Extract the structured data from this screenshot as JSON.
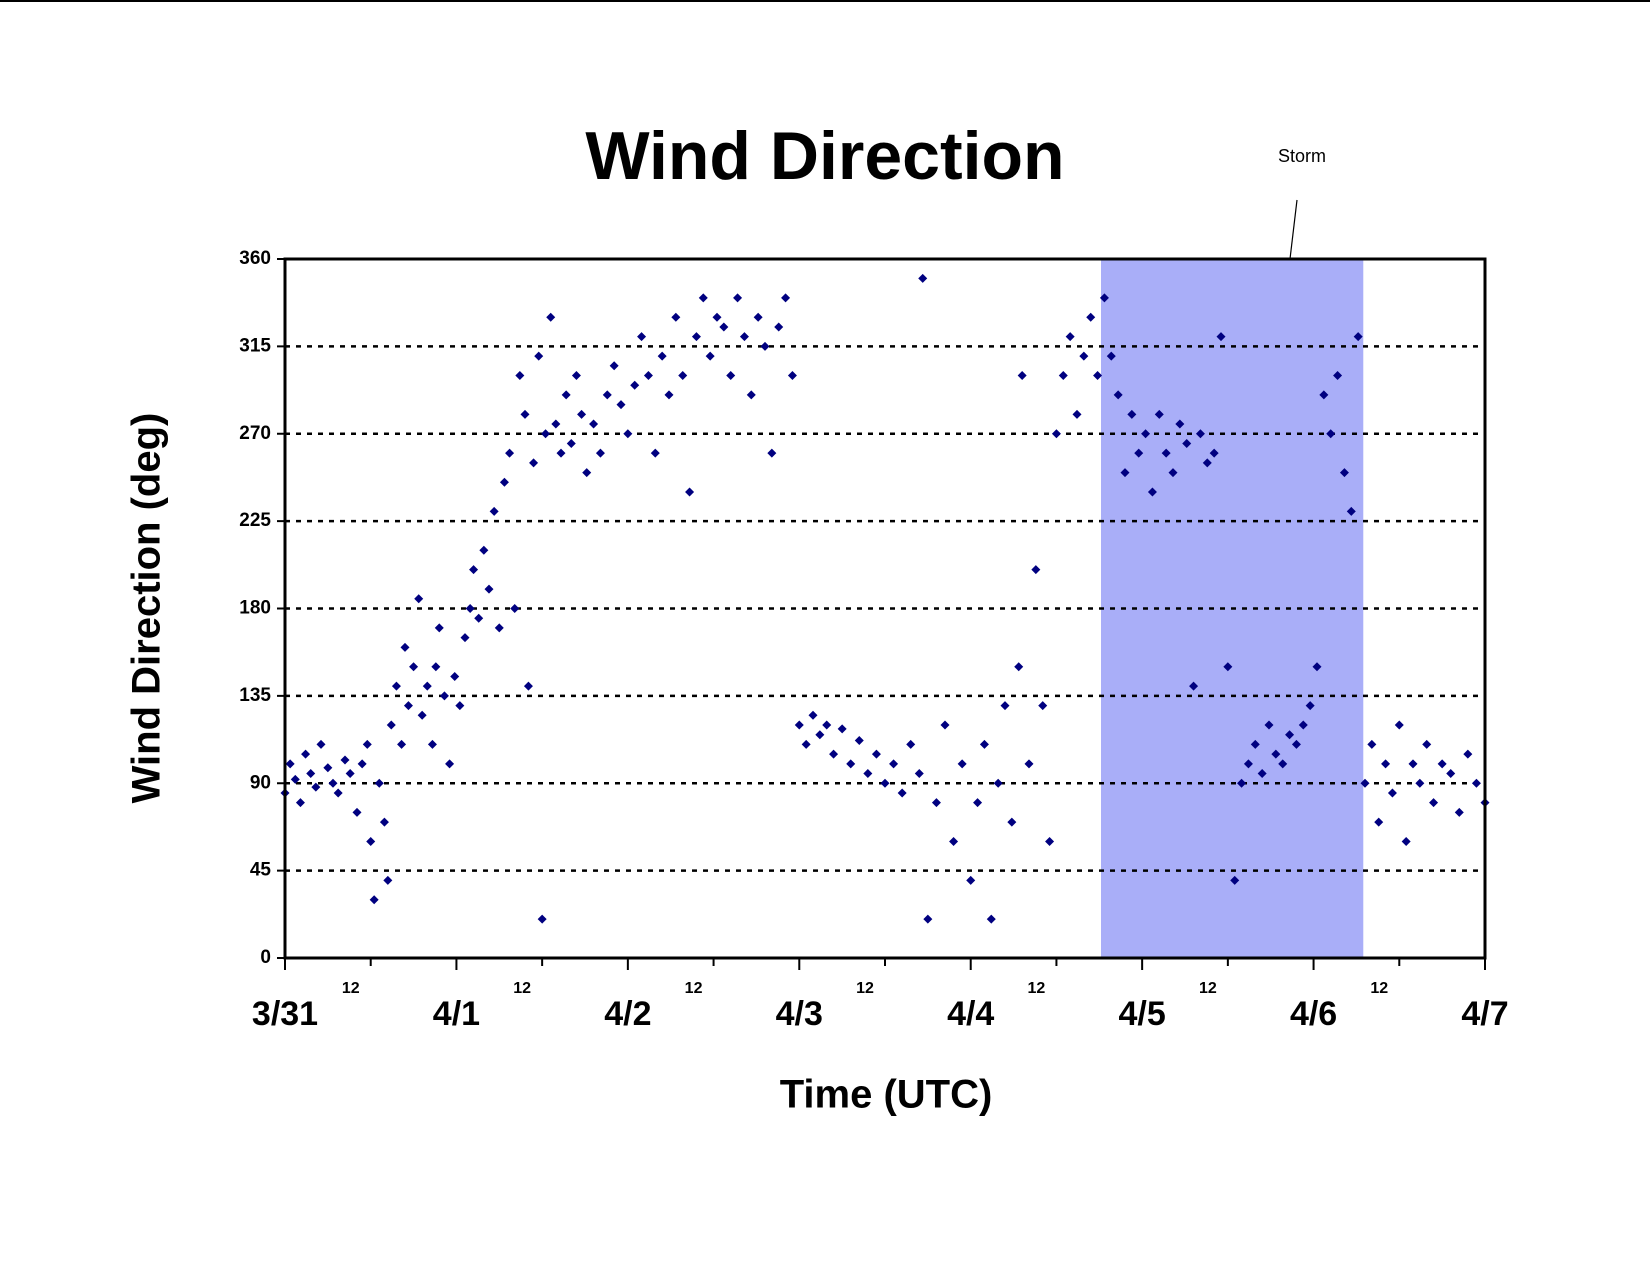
{
  "chart_data": {
    "type": "scatter",
    "title": "Wind Direction",
    "x_label": "Time (UTC)",
    "y_label": "Wind Direction (deg)",
    "color": "#000080",
    "grid": true,
    "storm": {
      "label": "Storm",
      "xlim": [
        4.76,
        6.29
      ],
      "color": "#a9aef8"
    },
    "xlim": [
      0,
      7
    ],
    "ylim": [
      0,
      360
    ],
    "yticks": [
      0,
      45,
      90,
      135,
      180,
      225,
      270,
      315,
      360
    ],
    "xticks": [
      {
        "value": 0,
        "label": "3/31"
      },
      {
        "value": 1,
        "label": "4/1"
      },
      {
        "value": 2,
        "label": "4/2"
      },
      {
        "value": 3,
        "label": "4/3"
      },
      {
        "value": 4,
        "label": "4/4"
      },
      {
        "value": 5,
        "label": "4/5"
      },
      {
        "value": 6,
        "label": "4/6"
      },
      {
        "value": 7,
        "label": "4/7"
      }
    ],
    "xminorticks": [
      {
        "value": 0.5,
        "label": "12"
      },
      {
        "value": 1.5,
        "label": "12"
      },
      {
        "value": 2.5,
        "label": "12"
      },
      {
        "value": 3.5,
        "label": "12"
      },
      {
        "value": 4.5,
        "label": "12"
      },
      {
        "value": 5.5,
        "label": "12"
      },
      {
        "value": 6.5,
        "label": "12"
      }
    ],
    "x": [
      0.0,
      0.03,
      0.06,
      0.09,
      0.12,
      0.15,
      0.18,
      0.21,
      0.25,
      0.28,
      0.31,
      0.35,
      0.38,
      0.42,
      0.45,
      0.48,
      0.5,
      0.52,
      0.55,
      0.58,
      0.6,
      0.62,
      0.65,
      0.68,
      0.7,
      0.72,
      0.75,
      0.78,
      0.8,
      0.83,
      0.86,
      0.88,
      0.9,
      0.93,
      0.96,
      0.99,
      1.02,
      1.05,
      1.08,
      1.1,
      1.13,
      1.16,
      1.19,
      1.22,
      1.25,
      1.28,
      1.31,
      1.34,
      1.37,
      1.4,
      1.42,
      1.45,
      1.48,
      1.5,
      1.52,
      1.55,
      1.58,
      1.61,
      1.64,
      1.67,
      1.7,
      1.73,
      1.76,
      1.8,
      1.84,
      1.88,
      1.92,
      1.96,
      2.0,
      2.04,
      2.08,
      2.12,
      2.16,
      2.2,
      2.24,
      2.28,
      2.32,
      2.36,
      2.4,
      2.44,
      2.48,
      2.52,
      2.56,
      2.6,
      2.64,
      2.68,
      2.72,
      2.76,
      2.8,
      2.84,
      2.88,
      2.92,
      2.96,
      3.0,
      3.04,
      3.08,
      3.12,
      3.16,
      3.2,
      3.25,
      3.3,
      3.35,
      3.4,
      3.45,
      3.5,
      3.55,
      3.6,
      3.65,
      3.7,
      3.72,
      3.75,
      3.8,
      3.85,
      3.9,
      3.95,
      4.0,
      4.04,
      4.08,
      4.12,
      4.16,
      4.2,
      4.24,
      4.28,
      4.3,
      4.34,
      4.38,
      4.42,
      4.46,
      4.5,
      4.54,
      4.58,
      4.62,
      4.66,
      4.7,
      4.74,
      4.78,
      4.82,
      4.86,
      4.9,
      4.94,
      4.98,
      5.02,
      5.06,
      5.1,
      5.14,
      5.18,
      5.22,
      5.26,
      5.3,
      5.34,
      5.38,
      5.42,
      5.46,
      5.5,
      5.54,
      5.58,
      5.62,
      5.66,
      5.7,
      5.74,
      5.78,
      5.82,
      5.86,
      5.9,
      5.94,
      5.98,
      6.02,
      6.06,
      6.1,
      6.14,
      6.18,
      6.22,
      6.26,
      6.3,
      6.34,
      6.38,
      6.42,
      6.46,
      6.5,
      6.54,
      6.58,
      6.62,
      6.66,
      6.7,
      6.75,
      6.8,
      6.85,
      6.9,
      6.95,
      7.0
    ],
    "values": [
      85,
      100,
      92,
      80,
      105,
      95,
      88,
      110,
      98,
      90,
      85,
      102,
      95,
      75,
      100,
      110,
      60,
      30,
      90,
      70,
      40,
      120,
      140,
      110,
      160,
      130,
      150,
      185,
      125,
      140,
      110,
      150,
      170,
      135,
      100,
      145,
      130,
      165,
      180,
      200,
      175,
      210,
      190,
      230,
      170,
      245,
      260,
      180,
      300,
      280,
      140,
      255,
      310,
      20,
      270,
      330,
      275,
      260,
      290,
      265,
      300,
      280,
      250,
      275,
      260,
      290,
      305,
      285,
      270,
      295,
      320,
      300,
      260,
      310,
      290,
      330,
      300,
      240,
      320,
      340,
      310,
      330,
      325,
      300,
      340,
      320,
      290,
      330,
      315,
      260,
      325,
      340,
      300,
      120,
      110,
      125,
      115,
      120,
      105,
      118,
      100,
      112,
      95,
      105,
      90,
      100,
      85,
      110,
      95,
      350,
      20,
      80,
      120,
      60,
      100,
      40,
      80,
      110,
      20,
      90,
      130,
      70,
      150,
      300,
      100,
      200,
      130,
      60,
      270,
      300,
      320,
      280,
      310,
      330,
      300,
      340,
      310,
      290,
      250,
      280,
      260,
      270,
      240,
      280,
      260,
      250,
      275,
      265,
      140,
      270,
      255,
      260,
      320,
      150,
      40,
      90,
      100,
      110,
      95,
      120,
      105,
      100,
      115,
      110,
      120,
      130,
      150,
      290,
      270,
      300,
      250,
      230,
      320,
      90,
      110,
      70,
      100,
      85,
      120,
      60,
      100,
      90,
      110,
      80,
      100,
      95,
      75,
      105,
      90,
      80
    ]
  }
}
